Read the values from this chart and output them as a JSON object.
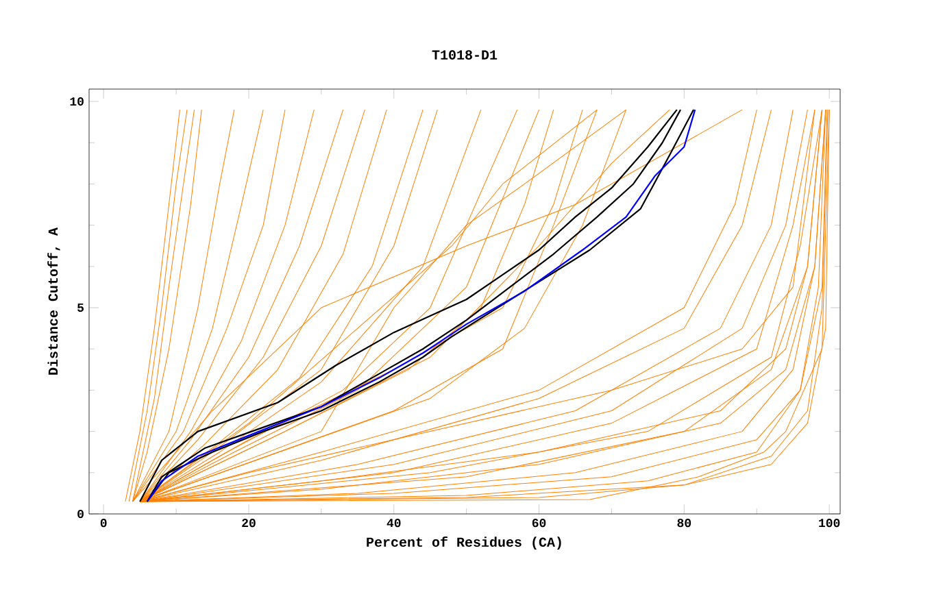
{
  "chart_data": {
    "type": "line",
    "title": "T1018-D1",
    "xlabel": "Percent of Residues (CA)",
    "ylabel": "Distance Cutoff, A",
    "xlim": [
      -2,
      101.5
    ],
    "ylim": [
      0,
      10.3
    ],
    "xticks": [
      0,
      20,
      40,
      60,
      80,
      100
    ],
    "yticks": [
      0,
      5,
      10
    ],
    "grid": false,
    "series": [
      {
        "color": "#ff8000",
        "x": [
          3,
          5,
          7,
          9,
          10.5
        ],
        "values": [
          0.3,
          2,
          4.5,
          7.5,
          9.8
        ]
      },
      {
        "color": "#ff8000",
        "x": [
          3.5,
          6,
          8,
          10,
          11.5
        ],
        "values": [
          0.3,
          2.5,
          5,
          8,
          9.8
        ]
      },
      {
        "color": "#ff8000",
        "x": [
          4,
          7,
          9,
          11,
          12.5
        ],
        "values": [
          0.3,
          2.8,
          5.5,
          8,
          9.8
        ]
      },
      {
        "color": "#ff8000",
        "x": [
          4,
          6,
          9,
          12,
          13.5
        ],
        "values": [
          0.3,
          1.5,
          4,
          7.5,
          9.8
        ]
      },
      {
        "color": "#ff8000",
        "x": [
          4,
          9,
          13,
          16,
          18
        ],
        "values": [
          0.3,
          2,
          5,
          8,
          9.8
        ]
      },
      {
        "color": "#ff8000",
        "x": [
          4,
          10,
          15,
          19,
          22
        ],
        "values": [
          0.3,
          2,
          4.5,
          7.5,
          9.8
        ]
      },
      {
        "color": "#ff8000",
        "x": [
          4,
          11,
          17,
          22,
          25
        ],
        "values": [
          0.3,
          2,
          4.5,
          7,
          9.8
        ]
      },
      {
        "color": "#ff8000",
        "x": [
          5,
          12,
          19,
          25,
          29
        ],
        "values": [
          0.3,
          2,
          4.2,
          7,
          9.8
        ]
      },
      {
        "color": "#ff8000",
        "x": [
          5,
          12,
          20,
          27,
          33
        ],
        "values": [
          0.3,
          1.8,
          3.8,
          6.5,
          9.8
        ]
      },
      {
        "color": "#ff8000",
        "x": [
          5,
          13,
          22,
          30,
          36
        ],
        "values": [
          0.3,
          1.8,
          3.8,
          6.5,
          9.8
        ]
      },
      {
        "color": "#ff8000",
        "x": [
          5,
          14,
          24,
          33,
          39
        ],
        "values": [
          0.3,
          1.7,
          3.5,
          6.3,
          9.8
        ]
      },
      {
        "color": "#ff8000",
        "x": [
          5,
          15,
          27,
          37,
          44
        ],
        "values": [
          0.3,
          1.6,
          3.3,
          6,
          9.8
        ]
      },
      {
        "color": "#ff8000",
        "x": [
          5,
          15,
          30,
          40,
          46
        ],
        "values": [
          0.3,
          1.5,
          3.5,
          6.5,
          9.8
        ]
      },
      {
        "color": "#ff8000",
        "x": [
          5,
          16,
          30,
          44,
          52
        ],
        "values": [
          0.3,
          1.5,
          3.2,
          6,
          9.8
        ]
      },
      {
        "color": "#ff8000",
        "x": [
          5,
          17,
          33,
          45,
          57
        ],
        "values": [
          0.3,
          1.5,
          3,
          5,
          9.8
        ]
      },
      {
        "color": "#ff8000",
        "x": [
          5,
          18,
          35,
          50,
          60
        ],
        "values": [
          0.3,
          1.5,
          3,
          5.5,
          9.8
        ]
      },
      {
        "color": "#ff8000",
        "x": [
          5,
          20,
          40,
          55,
          62,
          66
        ],
        "values": [
          0.3,
          1.8,
          3.5,
          5,
          7.5,
          9.8
        ]
      },
      {
        "color": "#ff8000",
        "x": [
          5,
          25,
          42,
          52,
          58,
          62
        ],
        "values": [
          0.3,
          2,
          3.5,
          5,
          7.5,
          9.8
        ]
      },
      {
        "color": "#ff8000",
        "x": [
          5,
          20,
          35,
          48,
          55,
          68
        ],
        "values": [
          0.3,
          2.2,
          4.5,
          6.5,
          8,
          9.8
        ]
      },
      {
        "color": "#ff8000",
        "x": [
          5,
          25,
          45,
          60,
          70,
          78
        ],
        "values": [
          0.3,
          2,
          3.8,
          6.5,
          8.5,
          9.8
        ]
      },
      {
        "color": "#ff8000",
        "x": [
          5,
          30,
          40,
          50,
          58,
          72
        ],
        "values": [
          0.3,
          2,
          5,
          7,
          8,
          9.8
        ]
      },
      {
        "color": "#ff8000",
        "x": [
          4,
          15,
          30,
          50,
          65,
          88
        ],
        "values": [
          0.3,
          2.5,
          5,
          6.5,
          7.5,
          9.8
        ]
      },
      {
        "color": "#ff8000",
        "x": [
          5,
          40,
          55,
          62,
          68
        ],
        "values": [
          0.3,
          2.5,
          4,
          7,
          9.8
        ]
      },
      {
        "color": "#ff8000",
        "x": [
          5,
          45,
          58,
          66,
          72
        ],
        "values": [
          0.3,
          2.8,
          4.5,
          7,
          9.8
        ]
      },
      {
        "color": "#ff8000",
        "x": [
          5,
          30,
          60,
          80,
          87,
          90
        ],
        "values": [
          0.3,
          1.5,
          3,
          5,
          7.5,
          9.8
        ]
      },
      {
        "color": "#ff8000",
        "x": [
          5,
          30,
          60,
          80,
          88,
          92
        ],
        "values": [
          0.3,
          1.3,
          2.8,
          4.5,
          7,
          9.8
        ]
      },
      {
        "color": "#ff8000",
        "x": [
          5,
          35,
          65,
          85,
          92,
          95
        ],
        "values": [
          0.3,
          1.2,
          2.5,
          4.5,
          7,
          9.8
        ]
      },
      {
        "color": "#ff8000",
        "x": [
          5,
          40,
          70,
          88,
          94,
          97
        ],
        "values": [
          0.3,
          1.2,
          2.5,
          4.5,
          7,
          9.8
        ]
      },
      {
        "color": "#ff8000",
        "x": [
          5,
          40,
          70,
          90,
          95,
          98
        ],
        "values": [
          0.3,
          1,
          2.2,
          4,
          7,
          9.8
        ]
      },
      {
        "color": "#ff8000",
        "x": [
          5,
          45,
          75,
          92,
          96,
          99
        ],
        "values": [
          0.3,
          1,
          2,
          3.8,
          6.5,
          9.8
        ]
      },
      {
        "color": "#ff8000",
        "x": [
          5,
          50,
          80,
          92,
          97,
          99
        ],
        "values": [
          0.3,
          0.9,
          2,
          3.5,
          6,
          9.8
        ]
      },
      {
        "color": "#ff8000",
        "x": [
          5,
          30,
          60,
          85,
          94,
          97,
          99
        ],
        "values": [
          0.3,
          0.8,
          1.5,
          2.5,
          4,
          6,
          9.8
        ]
      },
      {
        "color": "#ff8000",
        "x": [
          5,
          30,
          60,
          85,
          94,
          98,
          99.5
        ],
        "values": [
          0.3,
          0.6,
          1.2,
          2.2,
          3.5,
          6,
          9.8
        ]
      },
      {
        "color": "#ff8000",
        "x": [
          5,
          35,
          65,
          88,
          95,
          98,
          99.5
        ],
        "values": [
          0.3,
          0.5,
          1,
          2,
          3.5,
          6,
          9.8
        ]
      },
      {
        "color": "#ff8000",
        "x": [
          5,
          40,
          70,
          90,
          96,
          98.5,
          99.5
        ],
        "values": [
          0.3,
          0.5,
          0.9,
          1.8,
          3,
          5.5,
          9.8
        ]
      },
      {
        "color": "#ff8000",
        "x": [
          5,
          50,
          75,
          90,
          96,
          99,
          99.7
        ],
        "values": [
          0.3,
          0.45,
          0.8,
          1.5,
          3,
          5.5,
          9.8
        ]
      },
      {
        "color": "#ff8000",
        "x": [
          5,
          50,
          80,
          92,
          97,
          99,
          99.8
        ],
        "values": [
          0.3,
          0.4,
          0.7,
          1.4,
          2.5,
          5,
          9.8
        ]
      },
      {
        "color": "#ff8000",
        "x": [
          5,
          60,
          80,
          92,
          97,
          99.5,
          100
        ],
        "values": [
          0.3,
          0.4,
          0.7,
          1.2,
          2.2,
          4.5,
          9.8
        ]
      },
      {
        "color": "#ff8000",
        "x": [
          5,
          67,
          82,
          91,
          94,
          99,
          100
        ],
        "values": [
          0.3,
          0.35,
          0.9,
          1.5,
          2,
          4,
          9.8
        ]
      },
      {
        "color": "#ff8000",
        "x": [
          5,
          20,
          45,
          70,
          88,
          95,
          98
        ],
        "values": [
          0.3,
          1,
          2,
          3,
          4,
          5.5,
          9.8
        ]
      },
      {
        "color": "#000000",
        "x": [
          5,
          8,
          13,
          24,
          32,
          40,
          45,
          50,
          55,
          60,
          65,
          70,
          75,
          79
        ],
        "values": [
          0.3,
          1.3,
          2,
          2.7,
          3.6,
          4.4,
          4.8,
          5.2,
          5.8,
          6.4,
          7.2,
          7.9,
          8.9,
          9.8
        ]
      },
      {
        "color": "#000000",
        "x": [
          6,
          9,
          15,
          22,
          30,
          38,
          44,
          48,
          57,
          67,
          74,
          78,
          81.3
        ],
        "values": [
          0.3,
          1,
          1.5,
          2,
          2.5,
          3.2,
          3.8,
          4.3,
          5.3,
          6.4,
          7.4,
          8.7,
          9.8
        ]
      },
      {
        "color": "#000000",
        "x": [
          6,
          8,
          14,
          22,
          30,
          38,
          44,
          50,
          56,
          62,
          68,
          73,
          77,
          79.5
        ],
        "values": [
          0.3,
          0.9,
          1.6,
          2.1,
          2.6,
          3.4,
          4,
          4.7,
          5.5,
          6.3,
          7.2,
          8,
          9,
          9.8
        ]
      },
      {
        "color": "#0000ff",
        "x": [
          6,
          8,
          13,
          20,
          30,
          38,
          44,
          50,
          58,
          66,
          72,
          76,
          80,
          81.5
        ],
        "values": [
          0.3,
          0.8,
          1.4,
          1.9,
          2.6,
          3.3,
          3.9,
          4.6,
          5.4,
          6.4,
          7.2,
          8.2,
          8.9,
          9.8
        ]
      }
    ]
  }
}
